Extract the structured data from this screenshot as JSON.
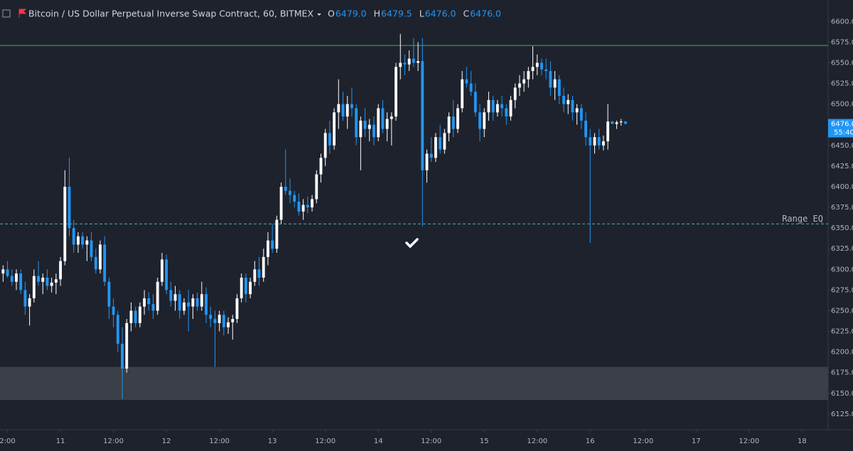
{
  "chart_data": {
    "type": "candlestick",
    "title": "Bitcoin / US Dollar Perpetual Inverse Swap Contract, 60, BITMEX",
    "ohlc_legend": [
      {
        "key": "O",
        "value": "6479.0"
      },
      {
        "key": "H",
        "value": "6479.5"
      },
      {
        "key": "L",
        "value": "6476.0"
      },
      {
        "key": "C",
        "value": "6476.0"
      }
    ],
    "up_color": "#ffffff",
    "down_color": "#2196f3",
    "candles": [
      [
        6295,
        6305,
        6285,
        6300
      ],
      [
        6300,
        6310,
        6290,
        6292
      ],
      [
        6292,
        6300,
        6280,
        6285
      ],
      [
        6285,
        6300,
        6275,
        6295
      ],
      [
        6295,
        6300,
        6270,
        6275
      ],
      [
        6275,
        6285,
        6245,
        6255
      ],
      [
        6255,
        6270,
        6232,
        6265
      ],
      [
        6265,
        6300,
        6260,
        6292
      ],
      [
        6292,
        6310,
        6280,
        6285
      ],
      [
        6285,
        6295,
        6270,
        6290
      ],
      [
        6290,
        6300,
        6275,
        6280
      ],
      [
        6280,
        6290,
        6272,
        6284
      ],
      [
        6284,
        6295,
        6270,
        6288
      ],
      [
        6288,
        6315,
        6280,
        6310
      ],
      [
        6310,
        6420,
        6305,
        6400
      ],
      [
        6400,
        6435,
        6340,
        6350
      ],
      [
        6350,
        6360,
        6320,
        6330
      ],
      [
        6330,
        6345,
        6320,
        6340
      ],
      [
        6340,
        6345,
        6325,
        6330
      ],
      [
        6330,
        6340,
        6310,
        6335
      ],
      [
        6335,
        6345,
        6310,
        6315
      ],
      [
        6315,
        6325,
        6295,
        6300
      ],
      [
        6300,
        6335,
        6295,
        6330
      ],
      [
        6330,
        6340,
        6280,
        6285
      ],
      [
        6285,
        6290,
        6240,
        6255
      ],
      [
        6255,
        6265,
        6230,
        6245
      ],
      [
        6245,
        6250,
        6200,
        6210
      ],
      [
        6210,
        6230,
        6143,
        6180
      ],
      [
        6180,
        6240,
        6175,
        6235
      ],
      [
        6235,
        6260,
        6225,
        6250
      ],
      [
        6250,
        6255,
        6230,
        6235
      ],
      [
        6235,
        6260,
        6230,
        6255
      ],
      [
        6255,
        6275,
        6245,
        6265
      ],
      [
        6265,
        6272,
        6250,
        6258
      ],
      [
        6258,
        6270,
        6240,
        6250
      ],
      [
        6250,
        6290,
        6245,
        6285
      ],
      [
        6285,
        6320,
        6280,
        6312
      ],
      [
        6312,
        6318,
        6270,
        6275
      ],
      [
        6275,
        6285,
        6255,
        6262
      ],
      [
        6262,
        6280,
        6250,
        6270
      ],
      [
        6270,
        6275,
        6240,
        6250
      ],
      [
        6250,
        6265,
        6245,
        6260
      ],
      [
        6260,
        6275,
        6225,
        6255
      ],
      [
        6255,
        6270,
        6240,
        6265
      ],
      [
        6265,
        6272,
        6250,
        6255
      ],
      [
        6255,
        6285,
        6250,
        6270
      ],
      [
        6270,
        6278,
        6235,
        6245
      ],
      [
        6245,
        6255,
        6230,
        6240
      ],
      [
        6240,
        6250,
        6182,
        6235
      ],
      [
        6235,
        6250,
        6225,
        6245
      ],
      [
        6245,
        6250,
        6220,
        6230
      ],
      [
        6230,
        6242,
        6222,
        6236
      ],
      [
        6236,
        6245,
        6215,
        6240
      ],
      [
        6240,
        6270,
        6235,
        6265
      ],
      [
        6265,
        6295,
        6260,
        6290
      ],
      [
        6290,
        6295,
        6260,
        6270
      ],
      [
        6270,
        6290,
        6265,
        6285
      ],
      [
        6285,
        6310,
        6280,
        6300
      ],
      [
        6300,
        6315,
        6280,
        6290
      ],
      [
        6290,
        6325,
        6285,
        6315
      ],
      [
        6315,
        6345,
        6305,
        6335
      ],
      [
        6335,
        6355,
        6320,
        6325
      ],
      [
        6325,
        6365,
        6320,
        6360
      ],
      [
        6360,
        6405,
        6355,
        6400
      ],
      [
        6400,
        6445,
        6390,
        6395
      ],
      [
        6395,
        6410,
        6380,
        6390
      ],
      [
        6390,
        6395,
        6375,
        6382
      ],
      [
        6382,
        6392,
        6365,
        6370
      ],
      [
        6370,
        6385,
        6360,
        6378
      ],
      [
        6378,
        6388,
        6368,
        6375
      ],
      [
        6375,
        6390,
        6370,
        6385
      ],
      [
        6385,
        6420,
        6380,
        6415
      ],
      [
        6415,
        6440,
        6405,
        6435
      ],
      [
        6435,
        6470,
        6425,
        6465
      ],
      [
        6465,
        6480,
        6440,
        6450
      ],
      [
        6450,
        6495,
        6445,
        6490
      ],
      [
        6490,
        6530,
        6470,
        6500
      ],
      [
        6500,
        6515,
        6480,
        6485
      ],
      [
        6485,
        6510,
        6470,
        6500
      ],
      [
        6500,
        6520,
        6485,
        6495
      ],
      [
        6495,
        6500,
        6450,
        6460
      ],
      [
        6460,
        6485,
        6420,
        6480
      ],
      [
        6480,
        6495,
        6460,
        6470
      ],
      [
        6470,
        6482,
        6455,
        6475
      ],
      [
        6475,
        6485,
        6450,
        6460
      ],
      [
        6460,
        6500,
        6455,
        6495
      ],
      [
        6495,
        6505,
        6465,
        6470
      ],
      [
        6470,
        6490,
        6455,
        6482
      ],
      [
        6482,
        6490,
        6450,
        6485
      ],
      [
        6485,
        6550,
        6480,
        6545
      ],
      [
        6545,
        6585,
        6530,
        6550
      ],
      [
        6550,
        6560,
        6535,
        6548
      ],
      [
        6548,
        6565,
        6540,
        6555
      ],
      [
        6555,
        6580,
        6545,
        6550
      ],
      [
        6550,
        6575,
        6540,
        6552
      ],
      [
        6552,
        6580,
        6352,
        6420
      ],
      [
        6420,
        6445,
        6405,
        6440
      ],
      [
        6440,
        6460,
        6430,
        6435
      ],
      [
        6435,
        6465,
        6430,
        6460
      ],
      [
        6460,
        6475,
        6440,
        6445
      ],
      [
        6445,
        6470,
        6440,
        6465
      ],
      [
        6465,
        6490,
        6455,
        6485
      ],
      [
        6485,
        6505,
        6460,
        6470
      ],
      [
        6470,
        6500,
        6465,
        6495
      ],
      [
        6495,
        6540,
        6490,
        6530
      ],
      [
        6530,
        6545,
        6520,
        6525
      ],
      [
        6525,
        6540,
        6510,
        6515
      ],
      [
        6515,
        6525,
        6485,
        6490
      ],
      [
        6490,
        6500,
        6455,
        6470
      ],
      [
        6470,
        6495,
        6460,
        6490
      ],
      [
        6490,
        6515,
        6480,
        6505
      ],
      [
        6505,
        6510,
        6480,
        6490
      ],
      [
        6490,
        6505,
        6485,
        6500
      ],
      [
        6500,
        6510,
        6485,
        6495
      ],
      [
        6495,
        6500,
        6475,
        6485
      ],
      [
        6485,
        6510,
        6480,
        6505
      ],
      [
        6505,
        6525,
        6495,
        6520
      ],
      [
        6520,
        6535,
        6510,
        6525
      ],
      [
        6525,
        6540,
        6515,
        6530
      ],
      [
        6530,
        6545,
        6520,
        6540
      ],
      [
        6540,
        6570,
        6530,
        6545
      ],
      [
        6545,
        6560,
        6535,
        6550
      ],
      [
        6550,
        6555,
        6535,
        6542
      ],
      [
        6542,
        6555,
        6530,
        6540
      ],
      [
        6540,
        6552,
        6510,
        6520
      ],
      [
        6520,
        6540,
        6505,
        6530
      ],
      [
        6530,
        6535,
        6500,
        6510
      ],
      [
        6510,
        6520,
        6490,
        6500
      ],
      [
        6500,
        6512,
        6488,
        6505
      ],
      [
        6505,
        6510,
        6480,
        6490
      ],
      [
        6490,
        6500,
        6475,
        6495
      ],
      [
        6495,
        6500,
        6470,
        6480
      ],
      [
        6480,
        6490,
        6450,
        6460
      ],
      [
        6460,
        6470,
        6332,
        6450
      ],
      [
        6450,
        6465,
        6440,
        6460
      ],
      [
        6460,
        6470,
        6445,
        6450
      ],
      [
        6450,
        6462,
        6444,
        6455
      ],
      [
        6455,
        6500,
        6445,
        6479
      ],
      [
        6479,
        6479.5,
        6476,
        6476
      ],
      [
        6476,
        6480,
        6470,
        6478
      ],
      [
        6478,
        6482,
        6474,
        6479
      ],
      [
        6479,
        6479.5,
        6476,
        6476
      ]
    ],
    "xlim": [
      -0.7,
      186.9
    ],
    "xticks": [
      {
        "value": 1,
        "label": "2:00"
      },
      {
        "value": 13,
        "label": "11"
      },
      {
        "value": 25,
        "label": "12:00"
      },
      {
        "value": 37,
        "label": "12"
      },
      {
        "value": 49,
        "label": "12:00"
      },
      {
        "value": 61,
        "label": "13"
      },
      {
        "value": 73,
        "label": "12:00"
      },
      {
        "value": 85,
        "label": "14"
      },
      {
        "value": 97,
        "label": "12:00"
      },
      {
        "value": 109,
        "label": "15"
      },
      {
        "value": 121,
        "label": "12:00"
      },
      {
        "value": 133,
        "label": "16"
      },
      {
        "value": 145,
        "label": "12:00"
      },
      {
        "value": 157,
        "label": "17"
      },
      {
        "value": 169,
        "label": "12:00"
      },
      {
        "value": 181,
        "label": "18"
      }
    ],
    "ylim": [
      6106,
      6626
    ],
    "yticks": [
      {
        "value": 6125,
        "label": "6125.0"
      },
      {
        "value": 6150,
        "label": "6150.0"
      },
      {
        "value": 6175,
        "label": "6175.0"
      },
      {
        "value": 6200,
        "label": "6200.0"
      },
      {
        "value": 6225,
        "label": "6225.0"
      },
      {
        "value": 6250,
        "label": "6250.0"
      },
      {
        "value": 6275,
        "label": "6275.0"
      },
      {
        "value": 6300,
        "label": "6300.0"
      },
      {
        "value": 6325,
        "label": "6325.0"
      },
      {
        "value": 6350,
        "label": "6350.0"
      },
      {
        "value": 6375,
        "label": "6375.0"
      },
      {
        "value": 6400,
        "label": "6400.0"
      },
      {
        "value": 6425,
        "label": "6425.0"
      },
      {
        "value": 6450,
        "label": "6450.0"
      },
      {
        "value": 6475,
        "label": "6475.0"
      },
      {
        "value": 6500,
        "label": "6500.0"
      },
      {
        "value": 6525,
        "label": "6525.0"
      },
      {
        "value": 6550,
        "label": "6550.0"
      },
      {
        "value": 6575,
        "label": "6575.0"
      },
      {
        "value": 6600,
        "label": "6600.0"
      }
    ],
    "levels": [
      {
        "value": 6571,
        "color": "#4caf50",
        "dashed": false
      },
      {
        "value": 6355,
        "color": "#4db6ac",
        "dashed": true,
        "label": "Range EQ"
      }
    ],
    "zone": {
      "from": 6142,
      "to": 6182,
      "color": "#3b3f47"
    },
    "last_price_label": "6476.0",
    "countdown": "55:40"
  }
}
